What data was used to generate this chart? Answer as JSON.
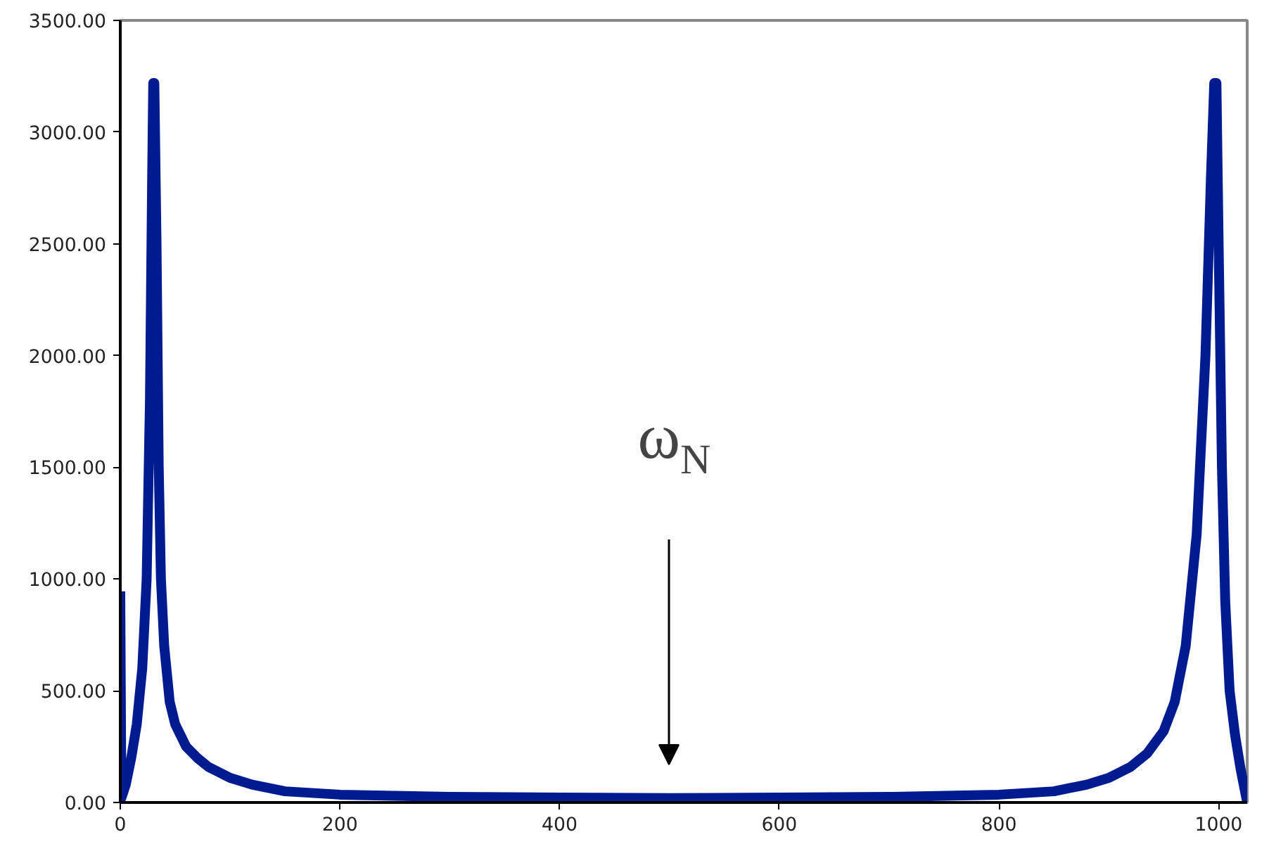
{
  "chart_data": {
    "type": "line",
    "x": [
      0,
      1,
      5,
      10,
      15,
      20,
      24,
      27,
      29,
      30,
      31,
      33,
      35,
      37,
      40,
      45,
      50,
      60,
      70,
      80,
      100,
      120,
      150,
      200,
      300,
      400,
      500,
      600,
      700,
      800,
      850,
      880,
      900,
      920,
      935,
      950,
      960,
      970,
      980,
      988,
      993,
      996,
      998,
      1000,
      1003,
      1006,
      1010,
      1015,
      1020,
      1026
    ],
    "series": [
      {
        "color": "#001a8f",
        "values": [
          945,
          20,
          80,
          200,
          350,
          600,
          1000,
          1800,
          2800,
          3220,
          3220,
          2500,
          1500,
          1000,
          700,
          450,
          350,
          250,
          200,
          160,
          110,
          80,
          50,
          35,
          25,
          22,
          20,
          22,
          25,
          35,
          50,
          80,
          110,
          160,
          220,
          320,
          450,
          700,
          1200,
          2000,
          2800,
          3220,
          3220,
          2500,
          1500,
          900,
          500,
          300,
          150,
          0
        ]
      }
    ],
    "xlim": [
      0,
      1026
    ],
    "ylim": [
      0,
      3500
    ],
    "xticks": [
      0,
      200,
      400,
      600,
      800,
      1000
    ],
    "yticks": [
      {
        "value": 0,
        "label": "0.00"
      },
      {
        "value": 500,
        "label": "500.00"
      },
      {
        "value": 1000,
        "label": "1000.00"
      },
      {
        "value": 1500,
        "label": "1500.00"
      },
      {
        "value": 2000,
        "label": "2000.00"
      },
      {
        "value": 2500,
        "label": "2500.00"
      },
      {
        "value": 3000,
        "label": "3000.00"
      },
      {
        "value": 3500,
        "label": "3500.00"
      }
    ],
    "annotations": [
      "ω$_{N}$"
    ],
    "grid": false,
    "marker": "none",
    "line_style": "solid"
  }
}
